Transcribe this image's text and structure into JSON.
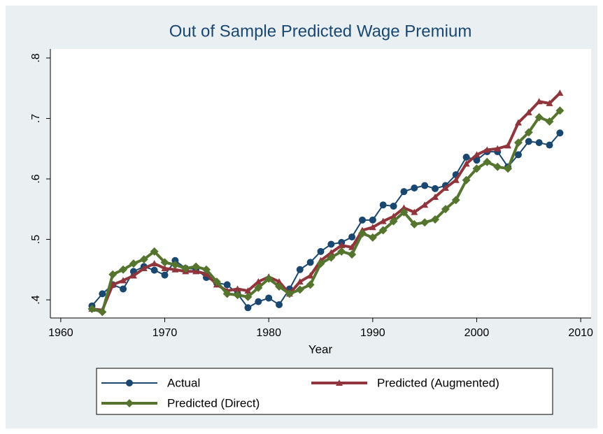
{
  "chart_data": {
    "type": "line",
    "title": "Out of Sample Predicted Wage Premium",
    "x_label": "Year",
    "x": [
      1963,
      1964,
      1965,
      1966,
      1967,
      1968,
      1969,
      1970,
      1971,
      1972,
      1973,
      1974,
      1975,
      1976,
      1977,
      1978,
      1979,
      1980,
      1981,
      1982,
      1983,
      1984,
      1985,
      1986,
      1987,
      1988,
      1989,
      1990,
      1991,
      1992,
      1993,
      1994,
      1995,
      1996,
      1997,
      1998,
      1999,
      2000,
      2001,
      2002,
      2003,
      2004,
      2005,
      2006,
      2007,
      2008
    ],
    "series": [
      {
        "name": "Actual",
        "color": "#1a476f",
        "marker": "circle",
        "values": [
          0.39,
          0.41,
          0.425,
          0.418,
          0.447,
          0.455,
          0.449,
          0.441,
          0.465,
          0.452,
          0.451,
          0.437,
          0.428,
          0.425,
          0.41,
          0.387,
          0.397,
          0.403,
          0.392,
          0.418,
          0.45,
          0.462,
          0.48,
          0.492,
          0.495,
          0.504,
          0.532,
          0.532,
          0.557,
          0.555,
          0.579,
          0.585,
          0.589,
          0.584,
          0.589,
          0.607,
          0.636,
          0.631,
          0.645,
          0.645,
          0.62,
          0.64,
          0.662,
          0.66,
          0.656,
          0.676
        ]
      },
      {
        "name": "Predicted (Augmented)",
        "color": "#90353b",
        "marker": "triangle",
        "values": [
          0.385,
          0.383,
          0.425,
          0.432,
          0.44,
          0.452,
          0.46,
          0.452,
          0.45,
          0.447,
          0.447,
          0.443,
          0.425,
          0.415,
          0.418,
          0.415,
          0.43,
          0.438,
          0.43,
          0.41,
          0.43,
          0.44,
          0.465,
          0.478,
          0.49,
          0.487,
          0.515,
          0.52,
          0.53,
          0.538,
          0.552,
          0.545,
          0.557,
          0.57,
          0.585,
          0.598,
          0.625,
          0.64,
          0.648,
          0.65,
          0.655,
          0.693,
          0.71,
          0.728,
          0.725,
          0.742
        ]
      },
      {
        "name": "Predicted (Direct)",
        "color": "#55752f",
        "marker": "diamond",
        "values": [
          0.385,
          0.38,
          0.442,
          0.45,
          0.46,
          0.467,
          0.48,
          0.462,
          0.458,
          0.452,
          0.455,
          0.45,
          0.43,
          0.41,
          0.408,
          0.405,
          0.42,
          0.435,
          0.422,
          0.41,
          0.417,
          0.425,
          0.46,
          0.47,
          0.48,
          0.475,
          0.51,
          0.503,
          0.515,
          0.53,
          0.545,
          0.525,
          0.528,
          0.533,
          0.55,
          0.565,
          0.598,
          0.617,
          0.628,
          0.62,
          0.617,
          0.66,
          0.677,
          0.702,
          0.695,
          0.713
        ]
      }
    ],
    "xlim": [
      1959,
      2011
    ],
    "xticks": [
      1960,
      1970,
      1980,
      1990,
      2000,
      2010
    ],
    "ylim": [
      0.37,
      0.815
    ],
    "yticks": [
      {
        "value": 0.4,
        "label": ".4"
      },
      {
        "value": 0.5,
        "label": ".5"
      },
      {
        "value": 0.6,
        "label": ".6"
      },
      {
        "value": 0.7,
        "label": ".7"
      },
      {
        "value": 0.8,
        "label": ".8"
      }
    ],
    "grid": false
  }
}
